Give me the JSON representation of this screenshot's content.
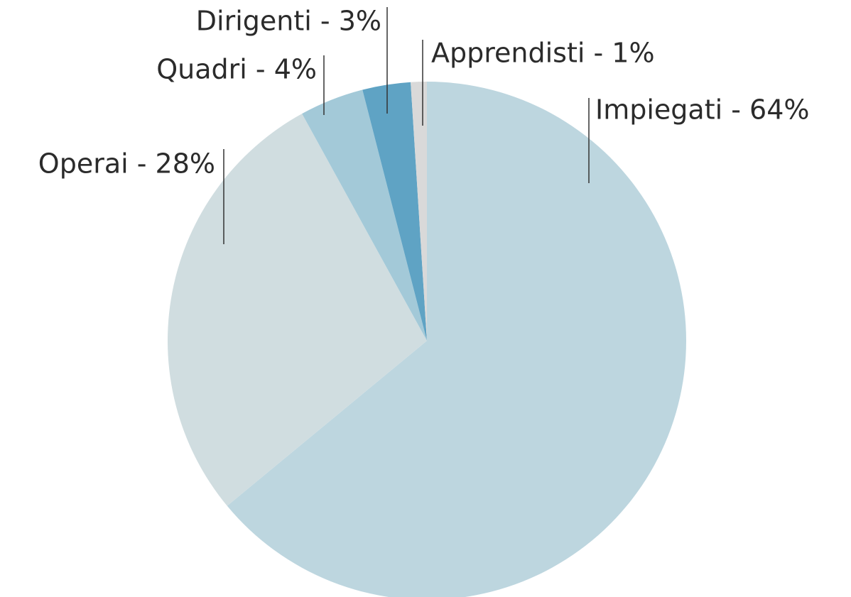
{
  "chart_data": {
    "type": "pie",
    "values": [
      64,
      28,
      4,
      3,
      1
    ],
    "value_labels": [
      "Impiegati - 64%",
      "Operai - 28%",
      "Quadri - 4%",
      "Dirigenti - 3%",
      "Apprendisti - 1%"
    ],
    "colors": [
      "#bdd6df",
      "#d0dde0",
      "#a3c9d8",
      "#5fa3c4",
      "#d9d9d9"
    ]
  }
}
